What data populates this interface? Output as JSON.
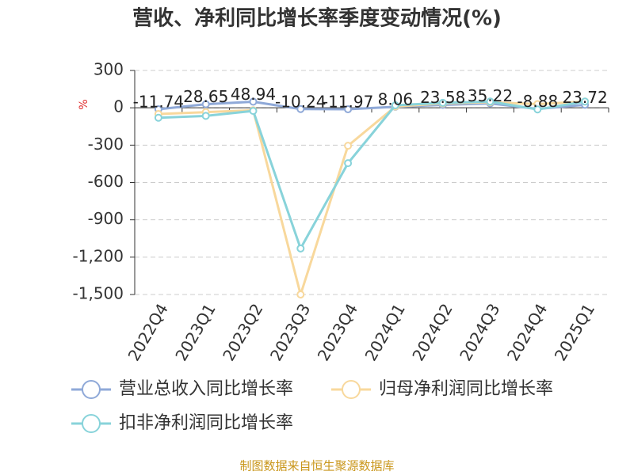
{
  "chart_data": {
    "type": "line",
    "title": "营收、净利同比增长率季度变动情况(%)",
    "y_label": "%",
    "source": "制图数据来自恒生聚源数据库",
    "categories": [
      "2022Q4",
      "2023Q1",
      "2023Q2",
      "2023Q3",
      "2023Q4",
      "2024Q1",
      "2024Q2",
      "2024Q3",
      "2024Q4",
      "2025Q1"
    ],
    "series": [
      {
        "name": "营业总收入同比增长率",
        "color": "#8fa9d8",
        "values": [
          -11.74,
          28.65,
          48.94,
          -10.24,
          -11.97,
          8.06,
          23.58,
          35.22,
          -8.88,
          23.72
        ],
        "show_labels": true
      },
      {
        "name": "归母净利润同比增长率",
        "color": "#f8d89c",
        "values": [
          -50,
          -35,
          -20,
          -1500,
          -305,
          10,
          35,
          45,
          30,
          50
        ],
        "show_labels": false
      },
      {
        "name": "扣非净利润同比增长率",
        "color": "#88d3da",
        "values": [
          -80,
          -65,
          -25,
          -1130,
          -445,
          20,
          40,
          50,
          -13,
          50
        ],
        "show_labels": false
      }
    ],
    "ylim": [
      -1500,
      300
    ],
    "yticks": [
      300,
      0,
      -300,
      -600,
      -900,
      {
        "value": -1200,
        "label": "-1,200"
      },
      {
        "value": -1500,
        "label": "-1,500"
      }
    ],
    "grid": true
  }
}
